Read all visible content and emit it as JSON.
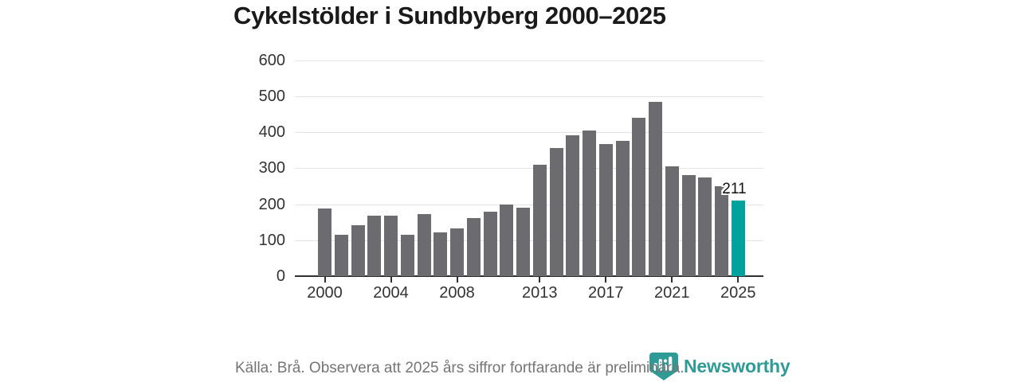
{
  "title": "Cykelstölder i Sundbyberg 2000–2025",
  "chart_data": {
    "type": "bar",
    "title": "Cykelstölder i Sundbyberg 2000–2025",
    "categories": [
      "2000",
      "2001",
      "2002",
      "2003",
      "2004",
      "2005",
      "2006",
      "2007",
      "2008",
      "2009",
      "2010",
      "2011",
      "2012",
      "2013",
      "2014",
      "2015",
      "2016",
      "2017",
      "2018",
      "2019",
      "2020",
      "2021",
      "2022",
      "2023",
      "2024",
      "2025"
    ],
    "values": [
      188,
      115,
      141,
      169,
      167,
      116,
      172,
      122,
      132,
      161,
      180,
      198,
      191,
      310,
      355,
      392,
      404,
      367,
      376,
      440,
      485,
      305,
      281,
      273,
      249,
      211
    ],
    "xlabel": "",
    "ylabel": "",
    "ylim": [
      0,
      600
    ],
    "yticks": [
      0,
      100,
      200,
      300,
      400,
      500,
      600
    ],
    "xtick_indices": [
      0,
      4,
      8,
      13,
      17,
      21,
      25
    ],
    "xtick_labels": [
      "2000",
      "2004",
      "2008",
      "2013",
      "2017",
      "2021",
      "2025"
    ],
    "grid": true,
    "legend": "none",
    "bar_color": "#6b6b70",
    "highlight": {
      "index": 25,
      "color": "#00a29e",
      "label": "211"
    }
  },
  "footer": {
    "source_note": "Källa: Brå. Observera att 2025 års siffror fortfarande är preliminära."
  },
  "branding": {
    "wordmark": "Newsworthy",
    "logo_icon": "newsworthy-shield-barchart-icon",
    "color": "#2e9b97"
  }
}
